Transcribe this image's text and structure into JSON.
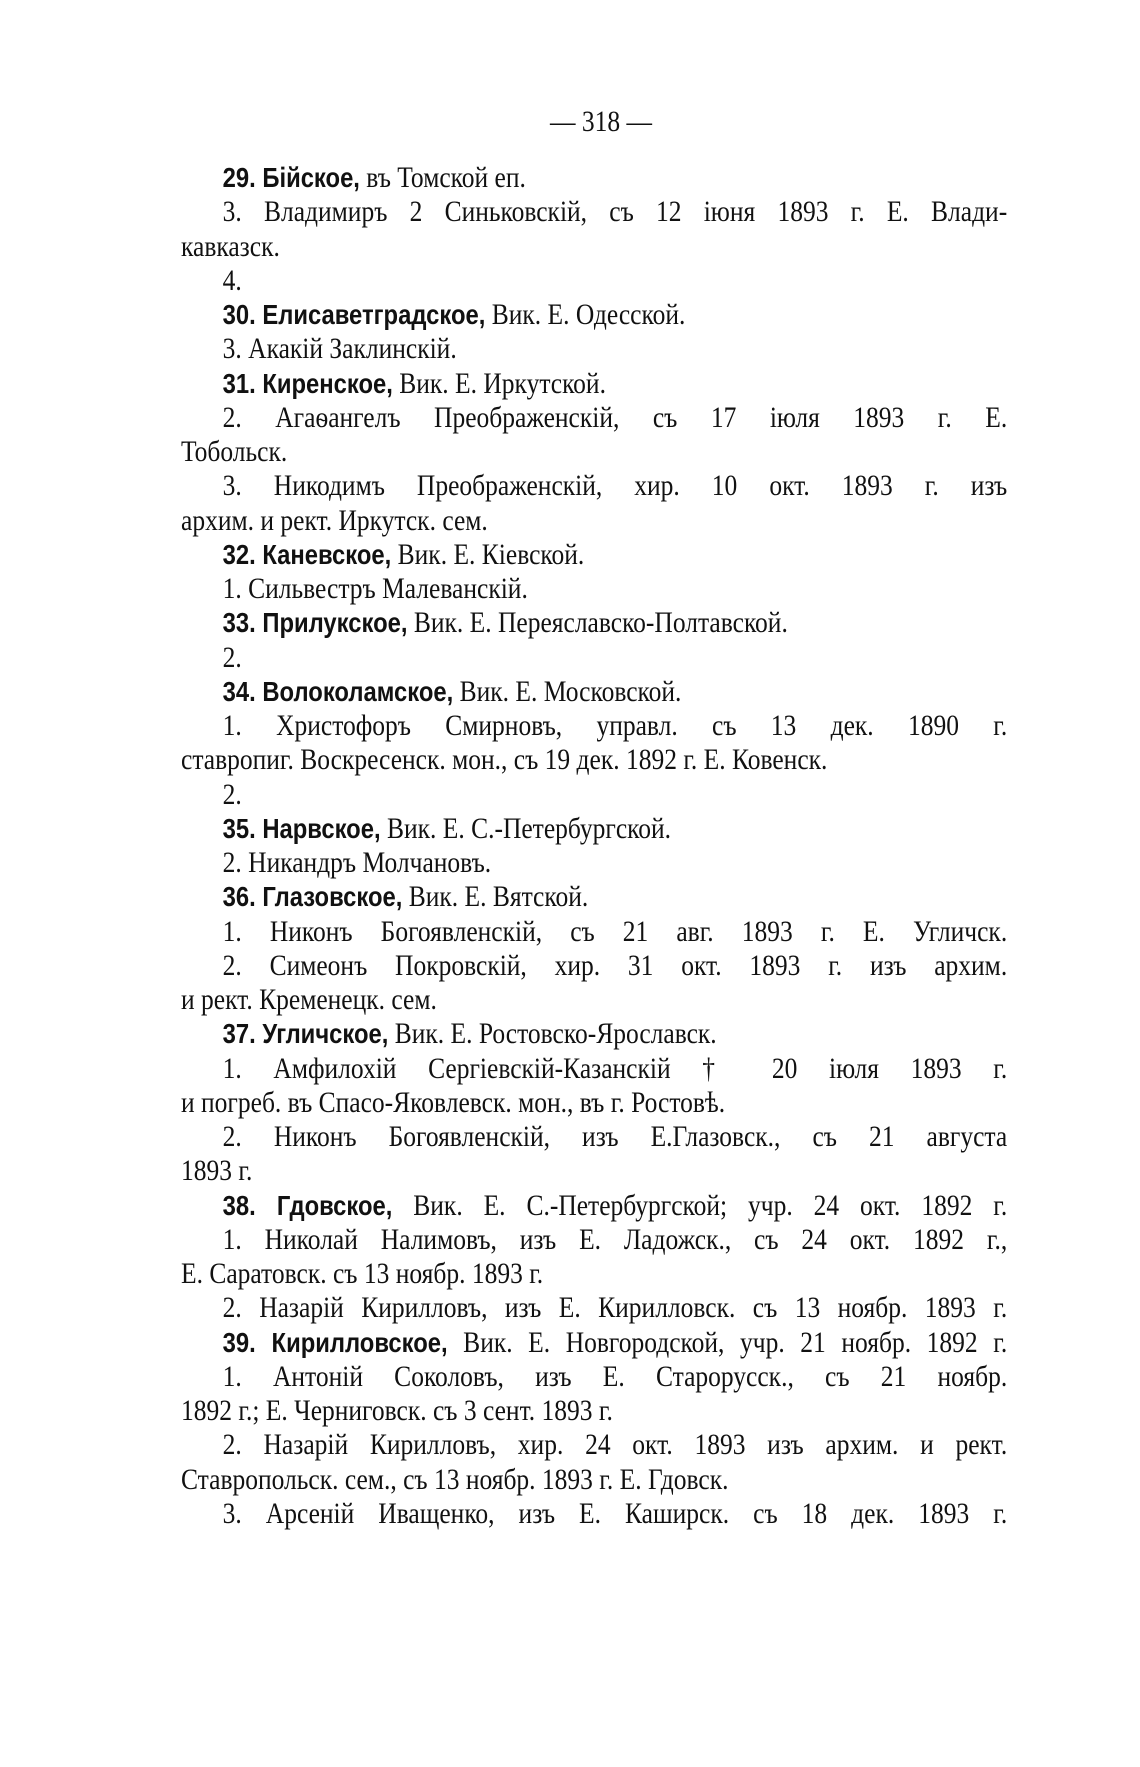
{
  "page_number": "— 318 —",
  "lines": [
    {
      "head": "29. Бійское,",
      "text": " въ Томской еп.",
      "indent": true,
      "justify": false
    },
    {
      "text": "3. Владимиръ 2 Синьковскій, съ 12 іюня 1893 г. Е. Влади-",
      "indent": true,
      "justify": true
    },
    {
      "text": "кавказск.",
      "indent": false,
      "justify": false
    },
    {
      "text": "4.",
      "indent": true,
      "justify": false
    },
    {
      "head": "30. Елисаветградское,",
      "text": " Вик. Е. Одесской.",
      "indent": true,
      "justify": false
    },
    {
      "text": "3. Акакій Заклинскій.",
      "indent": true,
      "justify": false
    },
    {
      "head": "31. Киренское,",
      "text": " Вик. Е. Иркутской.",
      "indent": true,
      "justify": false
    },
    {
      "text": "2. Агаѳангелъ Преображенскій, съ 17 іюля 1893 г. Е.",
      "indent": true,
      "justify": true
    },
    {
      "text": "Тобольск.",
      "indent": false,
      "justify": false
    },
    {
      "text": "3. Никодимъ Преображенскій, хир. 10 окт. 1893 г. изъ",
      "indent": true,
      "justify": true
    },
    {
      "text": "архим. и рект. Иркутск. сем.",
      "indent": false,
      "justify": false
    },
    {
      "head": "32. Каневское,",
      "text": " Вик. Е. Кіевской.",
      "indent": true,
      "justify": false
    },
    {
      "text": "1. Сильвестръ Малеванскій.",
      "indent": true,
      "justify": false
    },
    {
      "head": "33. Прилукское,",
      "text": " Вик. Е. Переяславско-Полтавской.",
      "indent": true,
      "justify": false
    },
    {
      "text": "2.",
      "indent": true,
      "justify": false
    },
    {
      "head": "34. Волоколамское,",
      "text": " Вик. Е. Московской.",
      "indent": true,
      "justify": false
    },
    {
      "text": "1. Христофоръ Смирновъ, управл. съ 13 дек. 1890 г.",
      "indent": true,
      "justify": true
    },
    {
      "text": "ставропиг. Воскресенск. мон., съ 19 дек. 1892 г. Е. Ковенск.",
      "indent": false,
      "justify": false
    },
    {
      "text": "2.",
      "indent": true,
      "justify": false
    },
    {
      "head": "35. Нарвское,",
      "text": " Вик. Е. С.-Петербургской.",
      "indent": true,
      "justify": false
    },
    {
      "text": "2. Никандръ Молчановъ.",
      "indent": true,
      "justify": false
    },
    {
      "head": "36. Глазовское,",
      "text": " Вик. Е. Вятской.",
      "indent": true,
      "justify": false
    },
    {
      "text": "1. Никонъ Богоявленскій, съ 21 авг. 1893 г. Е. Угличск.",
      "indent": true,
      "justify": true
    },
    {
      "text": "2. Симеонъ Покровскій, хир. 31 окт. 1893 г. изъ архим.",
      "indent": true,
      "justify": true
    },
    {
      "text": "и рект. Кременецк. сем.",
      "indent": false,
      "justify": false
    },
    {
      "head": "37. Угличское,",
      "text": " Вик. Е. Ростовско-Ярославск.",
      "indent": true,
      "justify": false
    },
    {
      "text": "1. Амфилохій Сергіевскій-Казанскій † 20 іюля 1893 г.",
      "indent": true,
      "justify": true
    },
    {
      "text": "и погреб. въ Спасо-Яковлевск. мон., въ г. Ростовѣ.",
      "indent": false,
      "justify": false
    },
    {
      "text": "2. Никонъ Богоявленскій, изъ Е.Глазовск., съ 21 августа",
      "indent": true,
      "justify": true
    },
    {
      "text": "1893 г.",
      "indent": false,
      "justify": false
    },
    {
      "head": "38. Гдовское,",
      "text": " Вик. Е. С.-Петербургской; учр. 24 окт. 1892 г.",
      "indent": true,
      "justify": true
    },
    {
      "text": "1. Николай Налимовъ, изъ Е. Ладожск., съ 24 окт. 1892 г.,",
      "indent": true,
      "justify": true
    },
    {
      "text": "Е. Саратовск. съ 13 ноябр. 1893 г.",
      "indent": false,
      "justify": false
    },
    {
      "text": "2. Назарій Кирилловъ, изъ Е. Кирилловск. съ 13 ноябр. 1893 г.",
      "indent": true,
      "justify": true
    },
    {
      "head": "39. Кирилловское,",
      "text": " Вик. Е. Новгородской, учр. 21 ноябр. 1892 г.",
      "indent": true,
      "justify": true
    },
    {
      "text": "1. Антоній Соколовъ, изъ Е. Старорусск., съ 21 ноябр.",
      "indent": true,
      "justify": true
    },
    {
      "text": "1892 г.; Е. Черниговск. съ 3 сент. 1893 г.",
      "indent": false,
      "justify": false
    },
    {
      "text": "2. Назарій Кирилловъ, хир. 24 окт. 1893 изъ архим. и рект.",
      "indent": true,
      "justify": true
    },
    {
      "text": "Ставропольск. сем., съ 13 ноябр. 1893 г. Е. Гдовск.",
      "indent": false,
      "justify": false
    },
    {
      "text": "3. Арсеній Иващенко, изъ Е. Каширск. съ 18 дек. 1893 г.",
      "indent": true,
      "justify": true
    }
  ]
}
